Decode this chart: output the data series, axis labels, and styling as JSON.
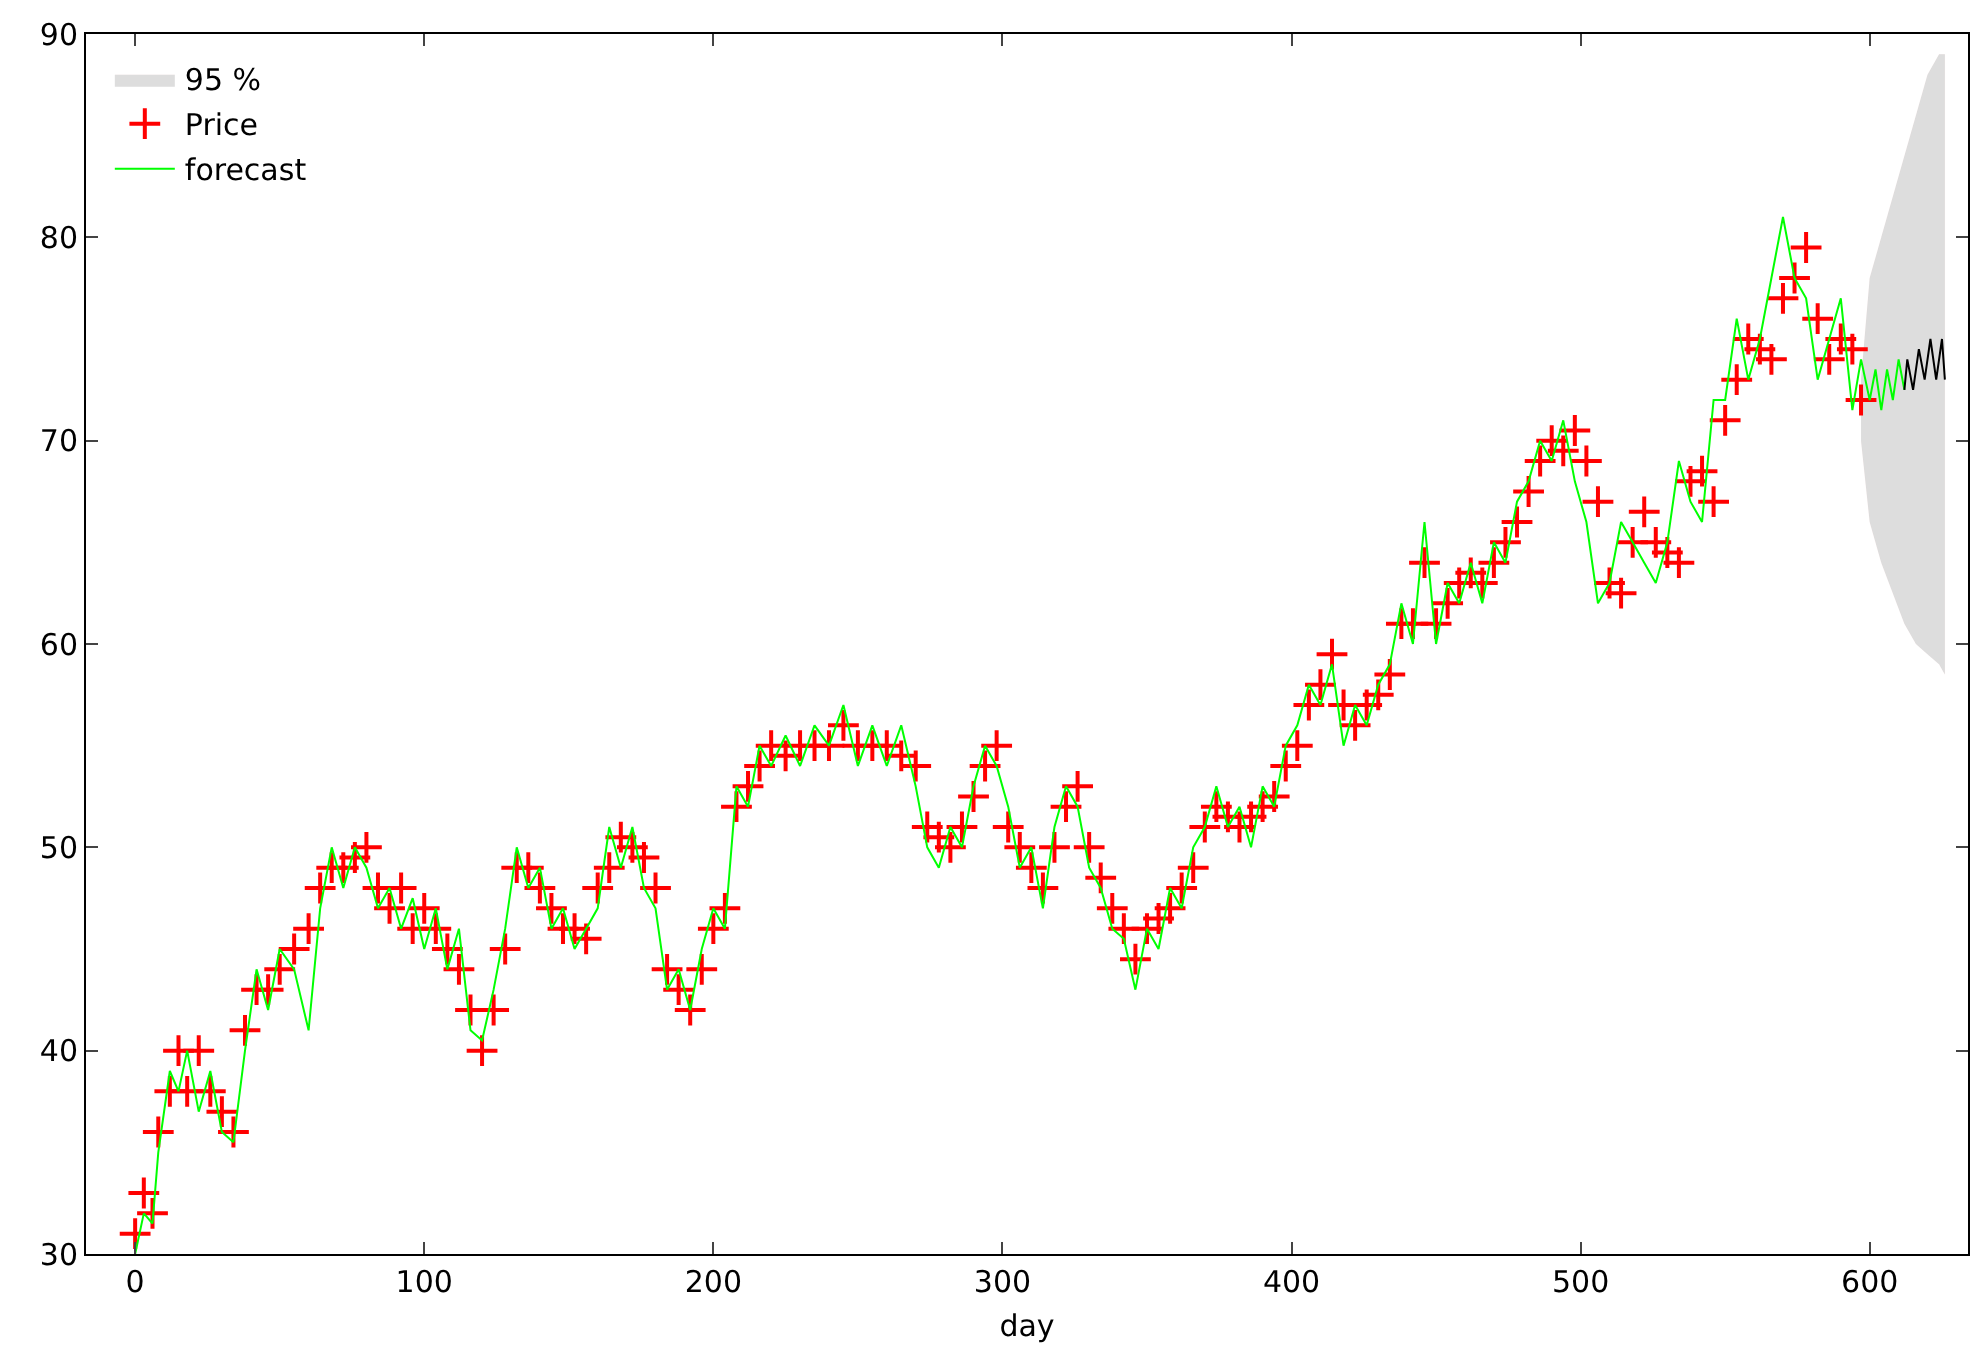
{
  "chart_data": {
    "type": "scatter",
    "xlabel": "day",
    "xlim": [
      -17,
      634
    ],
    "ylim": [
      30,
      90
    ],
    "xticks": [
      0,
      100,
      200,
      300,
      400,
      500,
      600
    ],
    "yticks": [
      30,
      40,
      50,
      60,
      70,
      80,
      90
    ],
    "legend": "top left",
    "series": [
      {
        "name": "95 %",
        "type": "area",
        "color": "#dddddd",
        "x": [
          597,
          600,
          604,
          608,
          612,
          616,
          620,
          624,
          626
        ],
        "values": [
          null,
          null,
          null,
          null,
          null,
          null,
          null,
          null,
          null
        ],
        "lower": [
          70,
          66,
          64,
          62.5,
          61,
          60,
          59.5,
          59,
          58.5
        ],
        "upper": [
          73,
          78,
          80,
          82,
          84,
          86,
          88,
          89,
          89
        ]
      },
      {
        "name": "Price",
        "marker": "cross",
        "color": "#ff0000",
        "x": [
          0,
          3,
          6,
          8,
          12,
          15,
          18,
          22,
          26,
          30,
          34,
          38,
          42,
          46,
          50,
          55,
          60,
          64,
          68,
          72,
          76,
          80,
          84,
          88,
          92,
          96,
          100,
          104,
          108,
          112,
          116,
          120,
          124,
          128,
          132,
          136,
          140,
          144,
          148,
          152,
          156,
          160,
          164,
          168,
          172,
          176,
          180,
          184,
          188,
          192,
          196,
          200,
          204,
          208,
          212,
          216,
          220,
          225,
          230,
          235,
          240,
          245,
          250,
          255,
          260,
          265,
          270,
          274,
          278,
          282,
          286,
          290,
          294,
          298,
          302,
          306,
          310,
          314,
          318,
          322,
          326,
          330,
          334,
          338,
          342,
          346,
          350,
          354,
          358,
          362,
          366,
          370,
          374,
          378,
          382,
          386,
          390,
          394,
          398,
          402,
          406,
          410,
          414,
          418,
          422,
          426,
          430,
          434,
          438,
          442,
          446,
          450,
          454,
          458,
          462,
          466,
          470,
          474,
          478,
          482,
          486,
          490,
          494,
          498,
          502,
          506,
          510,
          514,
          518,
          522,
          526,
          530,
          534,
          538,
          542,
          546,
          550,
          554,
          558,
          562,
          566,
          570,
          574,
          578,
          582,
          586,
          590,
          594,
          597
        ],
        "values": [
          31,
          33,
          32,
          36,
          38,
          40,
          38,
          40,
          38,
          37,
          36,
          41,
          43,
          43,
          44,
          45,
          46,
          48,
          49,
          49,
          49.5,
          50,
          48,
          47,
          48,
          46,
          47,
          46,
          45,
          44,
          42,
          40,
          42,
          45,
          49,
          49,
          48,
          47,
          46,
          46,
          45.5,
          48,
          49,
          50.5,
          50,
          49.5,
          48,
          44,
          43,
          42,
          44,
          46,
          47,
          52,
          53,
          54,
          55,
          54.5,
          55,
          55,
          55,
          56,
          55,
          55,
          55,
          54.5,
          54,
          51,
          50.5,
          50,
          51,
          52.5,
          54,
          55,
          51,
          50,
          49,
          48,
          50,
          52,
          53,
          50,
          48.5,
          47,
          46,
          44.5,
          46,
          46.5,
          47,
          48,
          49,
          51,
          52,
          51.5,
          51,
          51.5,
          52,
          52.5,
          54,
          55,
          57,
          58,
          59.5,
          57,
          56,
          57,
          57.5,
          58.5,
          61,
          61,
          64,
          61,
          62,
          63,
          63.5,
          63,
          64,
          65,
          66,
          67.5,
          69,
          70,
          69.5,
          70.5,
          69,
          67,
          63,
          62.5,
          65,
          66.5,
          65,
          64.5,
          64,
          68,
          68.5,
          67,
          71,
          73,
          75,
          74.5,
          74,
          77,
          78,
          79.5,
          76,
          74,
          75,
          74.5,
          72
        ]
      },
      {
        "name": "forecast",
        "type": "line",
        "color": "#00ff00",
        "x": [
          0,
          3,
          6,
          8,
          12,
          15,
          18,
          22,
          26,
          30,
          34,
          38,
          42,
          46,
          50,
          55,
          60,
          64,
          68,
          72,
          76,
          80,
          84,
          88,
          92,
          96,
          100,
          104,
          108,
          112,
          116,
          120,
          124,
          128,
          132,
          136,
          140,
          144,
          148,
          152,
          156,
          160,
          164,
          168,
          172,
          176,
          180,
          184,
          188,
          192,
          196,
          200,
          204,
          208,
          212,
          216,
          220,
          225,
          230,
          235,
          240,
          245,
          250,
          255,
          260,
          265,
          270,
          274,
          278,
          282,
          286,
          290,
          294,
          298,
          302,
          306,
          310,
          314,
          318,
          322,
          326,
          330,
          334,
          338,
          342,
          346,
          350,
          354,
          358,
          362,
          366,
          370,
          374,
          378,
          382,
          386,
          390,
          394,
          398,
          402,
          406,
          410,
          414,
          418,
          422,
          426,
          430,
          434,
          438,
          442,
          446,
          450,
          454,
          458,
          462,
          466,
          470,
          474,
          478,
          482,
          486,
          490,
          494,
          498,
          502,
          506,
          510,
          514,
          518,
          522,
          526,
          530,
          534,
          538,
          542,
          546,
          550,
          554,
          558,
          562,
          566,
          570,
          574,
          578,
          582,
          586,
          590,
          594,
          597,
          600,
          602,
          604,
          606,
          608,
          610,
          612
        ],
        "values": [
          30,
          32,
          31.5,
          35,
          39,
          38,
          40,
          37,
          39,
          36,
          35.5,
          40,
          44,
          42,
          45,
          44,
          41,
          47,
          50,
          48,
          50,
          49,
          47,
          48,
          46,
          47.5,
          45,
          47,
          44,
          46,
          41,
          40.5,
          43,
          46,
          50,
          48,
          49,
          46,
          47,
          45,
          46,
          47,
          51,
          49,
          51,
          48,
          47,
          43,
          44,
          42,
          45,
          47,
          46,
          53,
          52,
          55,
          54,
          55.5,
          54,
          56,
          55,
          57,
          54,
          56,
          54,
          56,
          53,
          50,
          49,
          51,
          50,
          53,
          55,
          54,
          52,
          49,
          50,
          47,
          51,
          53,
          52,
          49,
          48,
          46,
          45.5,
          43,
          46,
          45,
          48,
          47,
          50,
          51,
          53,
          51,
          52,
          50,
          53,
          52,
          55,
          56,
          58,
          57,
          59,
          55,
          57,
          56,
          58,
          59,
          62,
          60,
          66,
          60,
          63,
          62,
          64,
          62,
          65,
          64,
          67,
          68,
          70,
          69,
          71,
          68,
          66,
          62,
          63,
          66,
          65,
          64,
          63,
          65,
          69,
          67,
          66,
          72,
          72,
          76,
          73,
          75,
          78,
          81,
          78,
          77,
          73,
          75,
          77,
          71.5,
          74,
          72,
          73.5,
          71.5,
          73.5,
          72,
          74,
          72.5
        ]
      },
      {
        "type": "line",
        "color": "#000000",
        "x": [
          612,
          613,
          615,
          617,
          619,
          621,
          623,
          625,
          626
        ],
        "values": [
          72.5,
          74,
          72.5,
          74.5,
          73,
          75,
          73,
          75,
          73
        ]
      }
    ]
  }
}
